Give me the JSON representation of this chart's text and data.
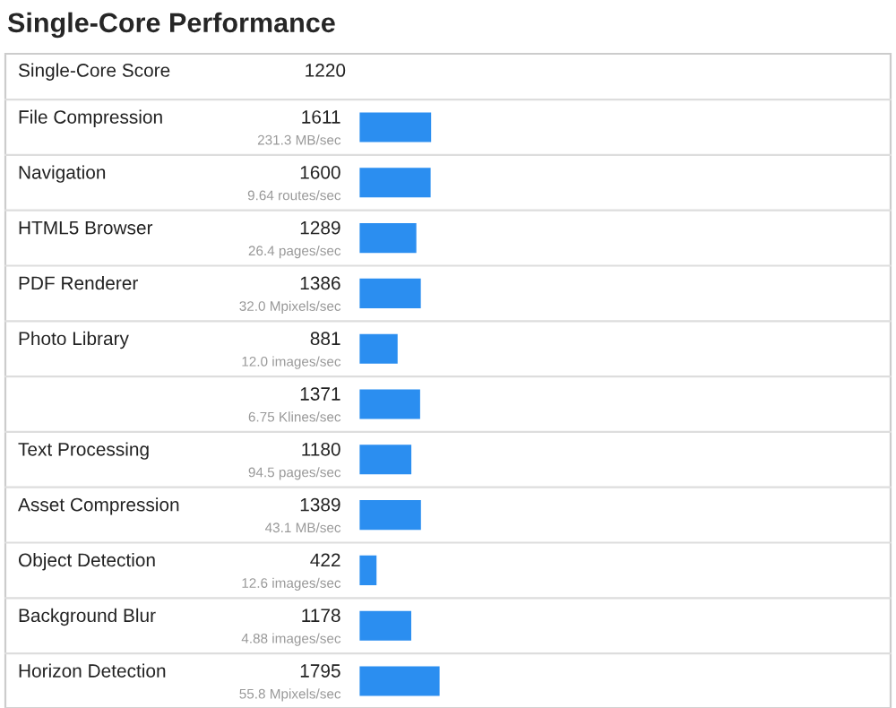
{
  "chart_data": {
    "type": "bar",
    "orientation": "horizontal",
    "title": "Single-Core Performance",
    "categories": [
      "File Compression",
      "Navigation",
      "HTML5 Browser",
      "PDF Renderer",
      "Photo Library",
      null,
      "Text Processing",
      "Asset Compression",
      "Object Detection",
      "Background Blur",
      "Horizon Detection"
    ],
    "values": [
      1611,
      1600,
      1289,
      1386,
      881,
      1371,
      1180,
      1389,
      422,
      1178,
      1795
    ],
    "color": "#2b8ef0",
    "data_labels": true,
    "grid": false,
    "legend": false,
    "tick_labels": "y",
    "annotations": [
      "Single-Core Score",
      "1220",
      "231.3 MB/sec",
      "9.64 routes/sec",
      "26.4 pages/sec",
      "32.0 Mpixels/sec",
      "12.0 images/sec",
      "6.75 Klines/sec",
      "94.5 pages/sec",
      "43.1 MB/sec",
      "12.6 images/sec",
      "4.88 images/sec",
      "55.8 Mpixels/sec"
    ]
  }
}
